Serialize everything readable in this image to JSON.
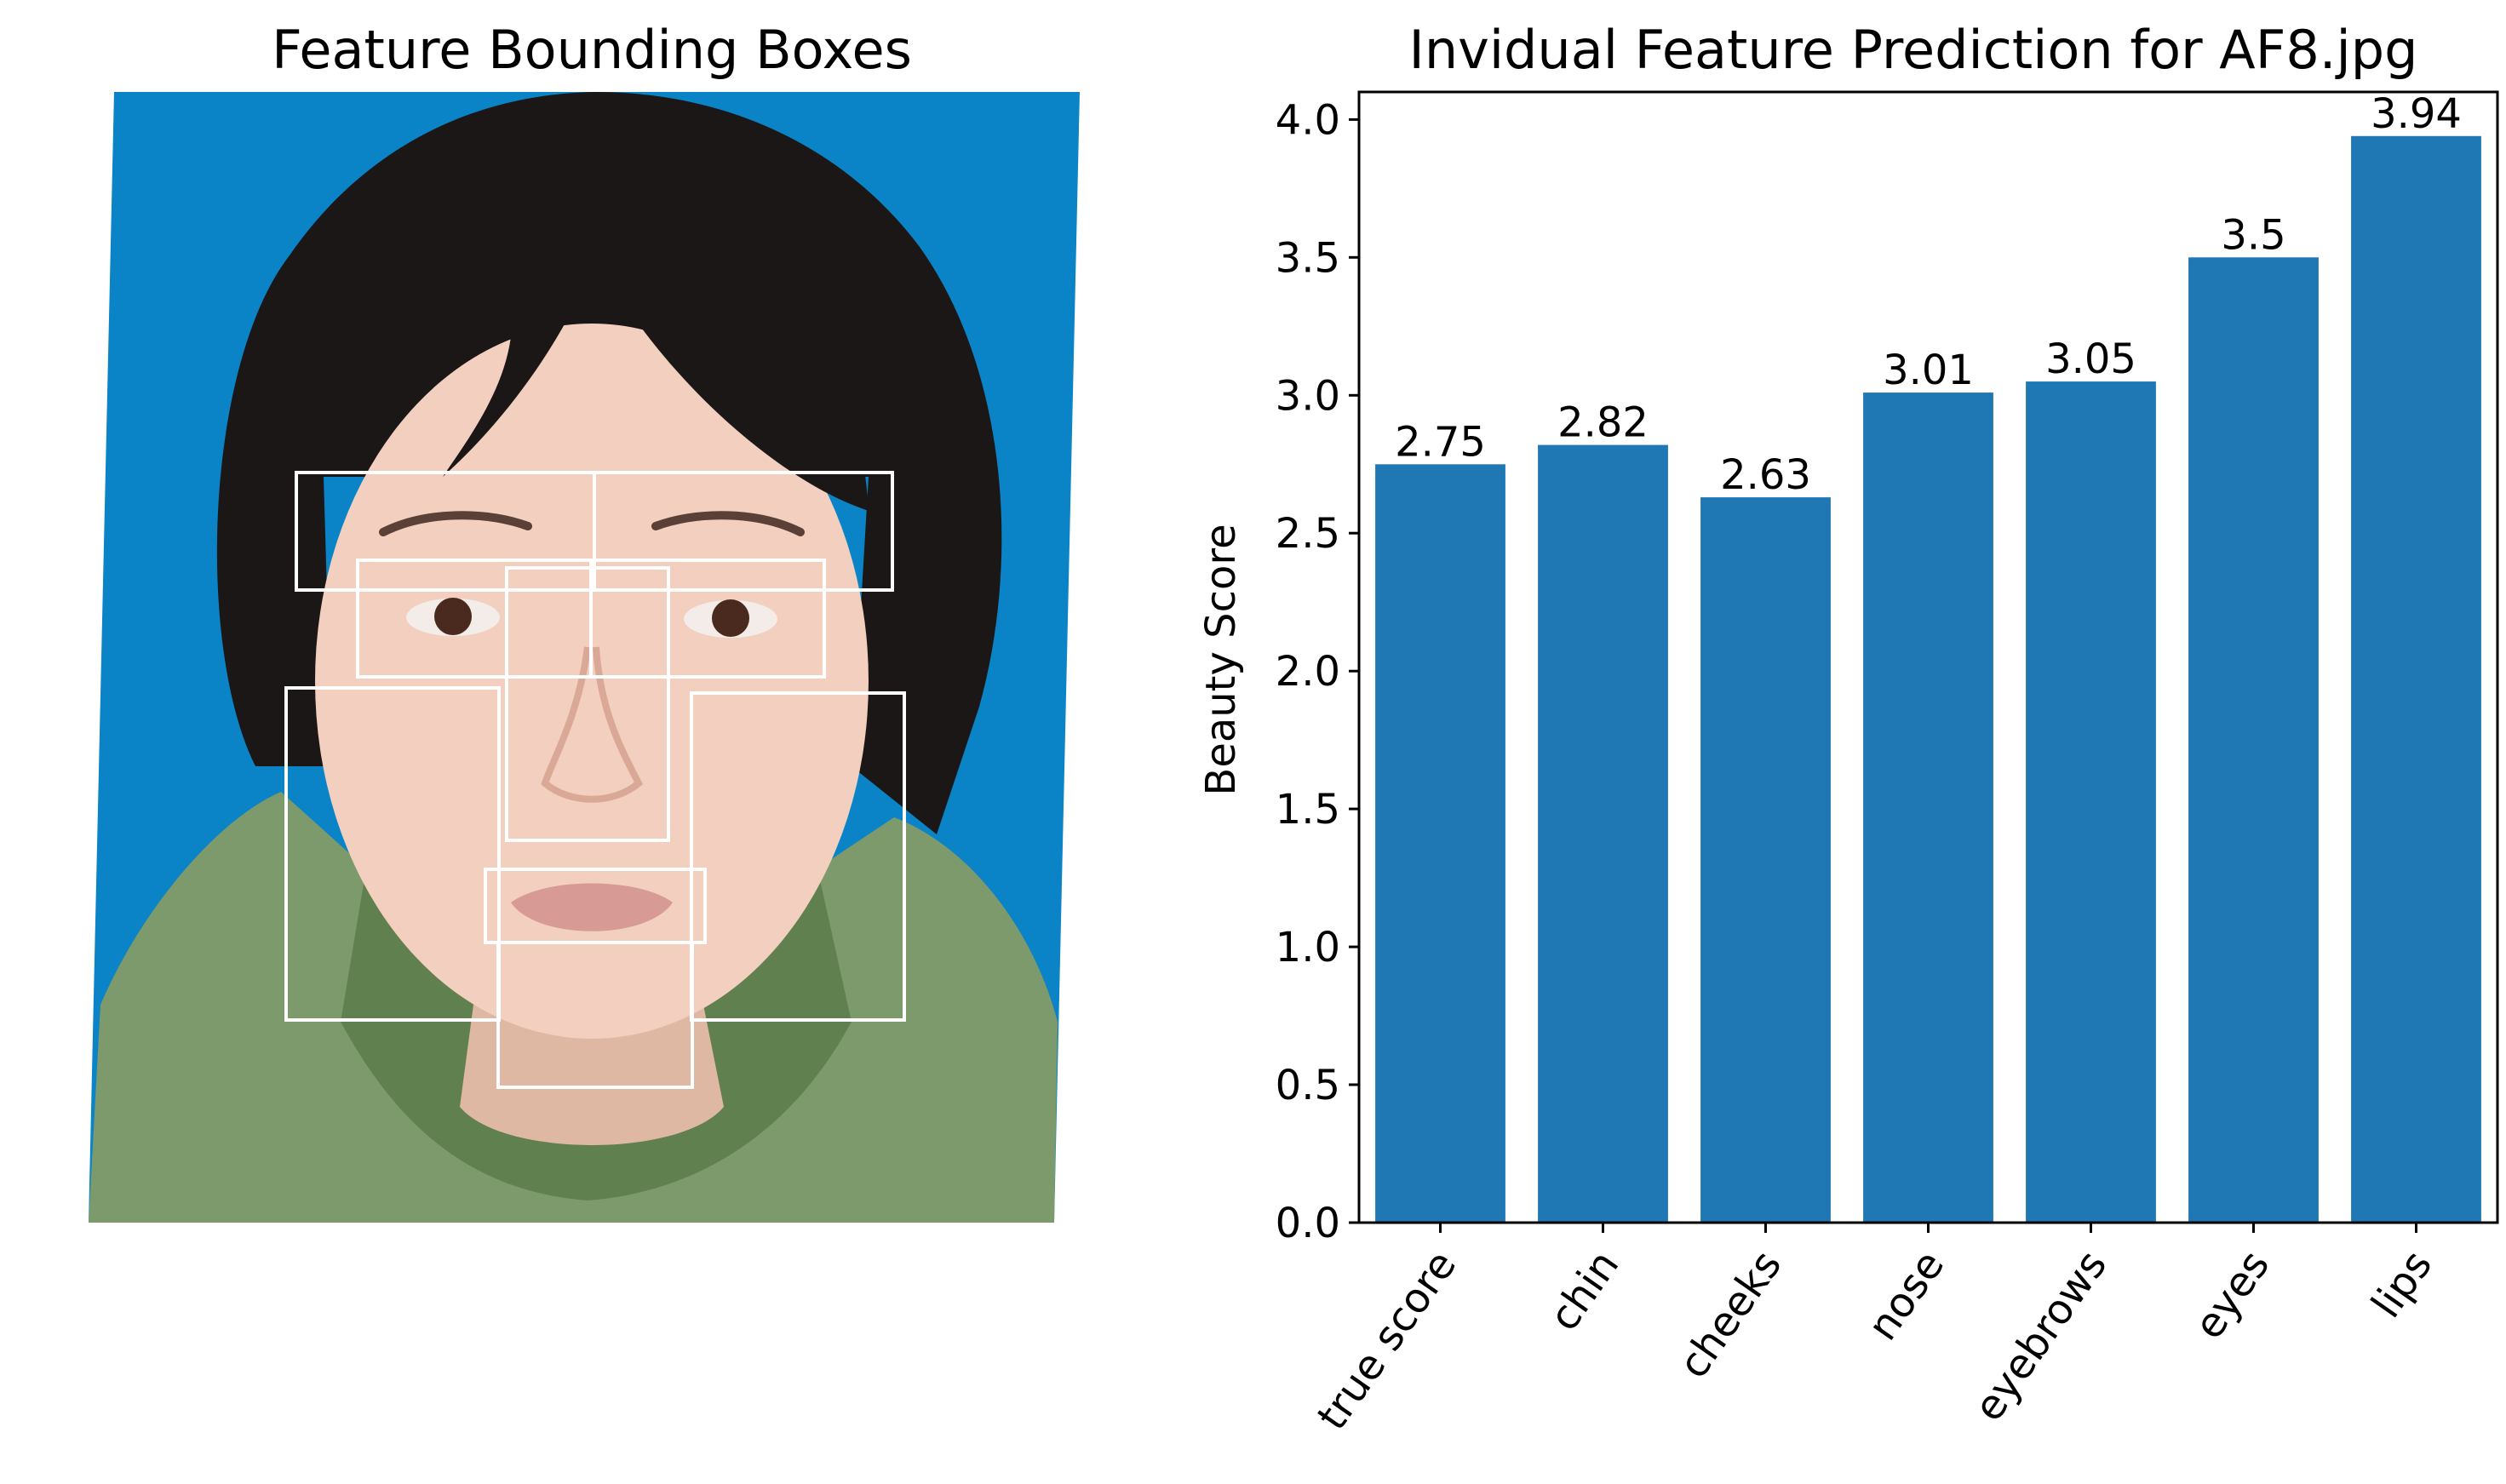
{
  "left_panel": {
    "title": "Feature Bounding Boxes",
    "image_description": "",
    "box_color": "#ffffff",
    "colors": {
      "background": "#0a84c6",
      "hair": "#1b1716",
      "skin": "#f2cfbe",
      "sweater": "#7d9a6d"
    }
  },
  "chart_data": {
    "type": "bar",
    "title": "Invidual Feature Prediction for AF8.jpg",
    "xlabel": "",
    "ylabel": "Beauty Score",
    "categories": [
      "true score",
      "chin",
      "cheeks",
      "nose",
      "eyebrows",
      "eyes",
      "lips"
    ],
    "values": [
      2.75,
      2.82,
      2.63,
      3.01,
      3.05,
      3.5,
      3.94
    ],
    "data_labels": [
      "2.75",
      "2.82",
      "2.63",
      "3.01",
      "3.05",
      "3.5",
      "3.94"
    ],
    "ylim": [
      0,
      4.1
    ],
    "yticks": [
      0.0,
      0.5,
      1.0,
      1.5,
      2.0,
      2.5,
      3.0,
      3.5,
      4.0
    ],
    "ytick_labels": [
      "0.0",
      "0.5",
      "1.0",
      "1.5",
      "2.0",
      "2.5",
      "3.0",
      "3.5",
      "4.0"
    ],
    "xtick_rotation": 55,
    "grid": false,
    "bar_color": "#1f77b4"
  }
}
